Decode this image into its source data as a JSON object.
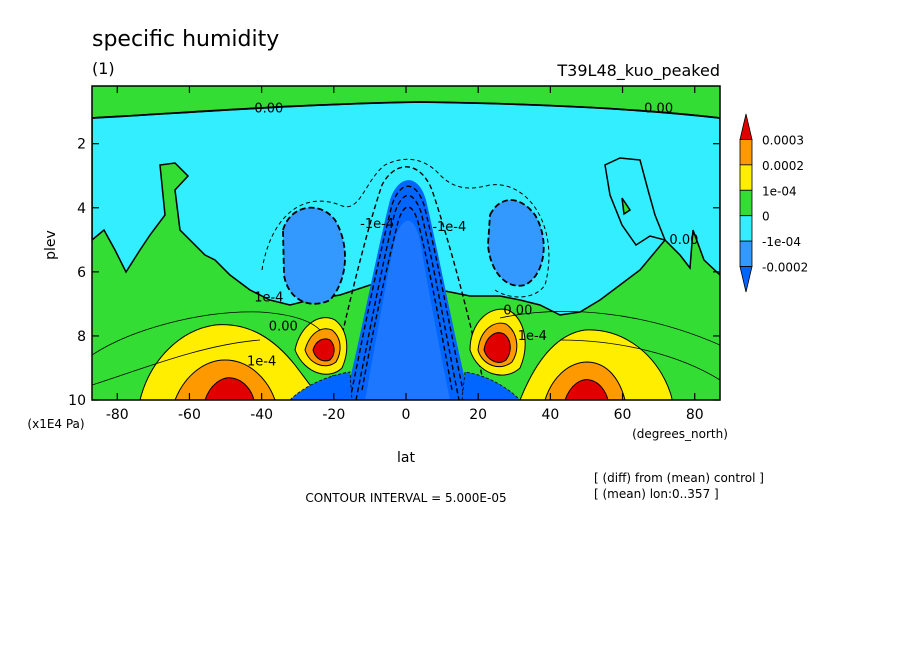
{
  "chart_data": {
    "type": "heatmap",
    "title": "specific humidity",
    "subtitle": "(1)",
    "run_label": "T39L48_kuo_peaked",
    "xlabel": "lat",
    "x_units": "(degrees_north)",
    "ylabel": "plev",
    "y_units": "(x1E4 Pa)",
    "xlim": [
      -87,
      87
    ],
    "ylim": [
      10,
      0.2
    ],
    "y_reversed": true,
    "xticks": [
      -80,
      -60,
      -40,
      -20,
      0,
      20,
      40,
      60,
      80
    ],
    "yticks": [
      2,
      4,
      6,
      8,
      10
    ],
    "legend": {
      "placement": "right",
      "labels": [
        "0.0003",
        "0.0002",
        "1e-04",
        "0",
        "-1e-04",
        "-0.0002"
      ],
      "colors": [
        "#e00000",
        "#ff9900",
        "#ffee00",
        "#33dd33",
        "#33eeff",
        "#3399ff",
        "#0066ff"
      ]
    },
    "contour_labels": [
      {
        "text": "0.00",
        "lat": -38,
        "plev": 0.9
      },
      {
        "text": "0.00",
        "lat": 70,
        "plev": 0.9
      },
      {
        "text": "0.00",
        "lat": -34,
        "plev": 7.7
      },
      {
        "text": "0.00",
        "lat": 31,
        "plev": 7.2
      },
      {
        "text": "0.00",
        "lat": 77,
        "plev": 5.0
      },
      {
        "text": "1e-4",
        "lat": -38,
        "plev": 6.8
      },
      {
        "text": "1e-4",
        "lat": -40,
        "plev": 8.8
      },
      {
        "text": "-1e-4",
        "lat": -8,
        "plev": 4.5
      },
      {
        "text": "-1e-4",
        "lat": 12,
        "plev": 4.6
      },
      {
        "text": "1e-4",
        "lat": 35,
        "plev": 8.0
      }
    ],
    "contour_interval": "CONTOUR INTERVAL = 5.000E-05",
    "notes": [
      "[ (diff) from (mean) control ]",
      "[ (mean) lon:0..357 ]"
    ]
  }
}
